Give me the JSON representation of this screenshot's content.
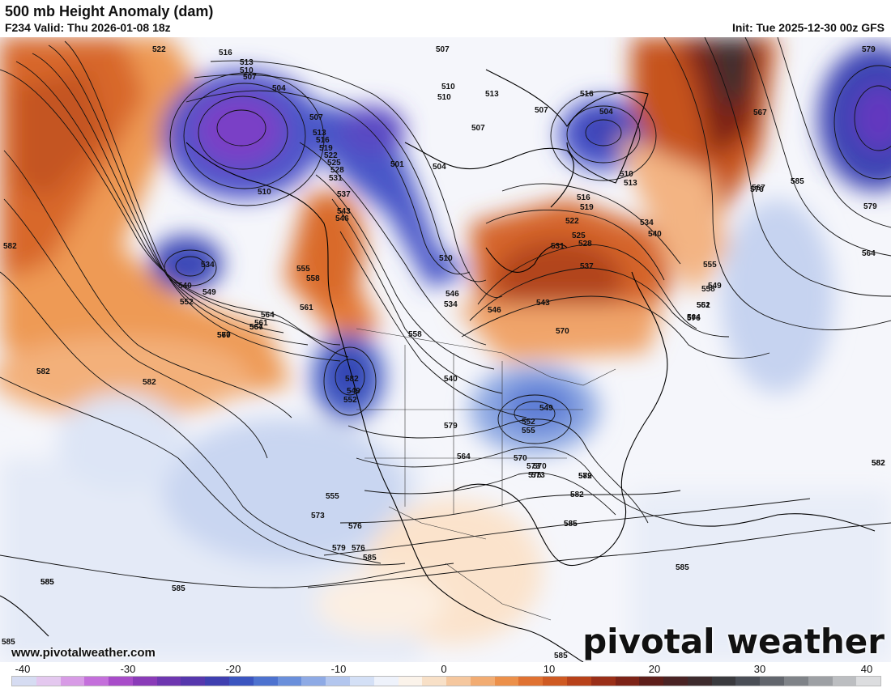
{
  "header": {
    "title": "500 mb Height Anomaly (dam)",
    "valid": "F234 Valid: Thu 2026-01-08 18z",
    "init": "Init: Tue 2025-12-30 00z GFS"
  },
  "footer": {
    "website": "www.pivotalweather.com",
    "brand": "pivotal weather"
  },
  "colorbar": {
    "ticks": [
      "-40",
      "-30",
      "-20",
      "-10",
      "0",
      "10",
      "20",
      "30",
      "40"
    ],
    "colors": [
      "#d6dcf2",
      "#e4c8ef",
      "#d89be6",
      "#c46fdb",
      "#a84cc9",
      "#8a3bb8",
      "#6e36b0",
      "#5637ad",
      "#3f3fb0",
      "#3b55c0",
      "#4d72cf",
      "#6a8fdb",
      "#8eaae5",
      "#b3c6ee",
      "#d4e0f6",
      "#eef2fb",
      "#fbf3ea",
      "#f8e0c7",
      "#f5c79e",
      "#f2ac72",
      "#ec904a",
      "#e07232",
      "#cf5a22",
      "#b8421a",
      "#9a2f18",
      "#7d2317",
      "#5e1e1a",
      "#4a2324",
      "#3d2b2d",
      "#3a3a3e",
      "#4a4e56",
      "#62666d",
      "#7f8388",
      "#9da0a4",
      "#bcbec1",
      "#dcdddf"
    ]
  },
  "map": {
    "icons": [
      "pivotal-logo-icon"
    ],
    "contour_labels": [
      "522",
      "516",
      "513",
      "510",
      "507",
      "504",
      "507",
      "510",
      "513",
      "516",
      "519",
      "522",
      "525",
      "528",
      "531",
      "537",
      "543",
      "546",
      "534",
      "540",
      "549",
      "552",
      "555",
      "558",
      "561",
      "564",
      "567",
      "570",
      "582",
      "582",
      "582",
      "582",
      "585",
      "585",
      "585",
      "585",
      "585",
      "585",
      "507",
      "510",
      "510",
      "513",
      "507",
      "516",
      "504",
      "510",
      "513",
      "507",
      "501",
      "504",
      "510",
      "516",
      "519",
      "522",
      "525",
      "528",
      "531",
      "534",
      "537",
      "540",
      "543",
      "546",
      "549",
      "552",
      "555",
      "558",
      "561",
      "564",
      "567",
      "570",
      "573",
      "576",
      "579",
      "582",
      "585",
      "576",
      "567",
      "579",
      "576",
      "564",
      "579",
      "582",
      "549",
      "552",
      "555",
      "573",
      "576",
      "579",
      "564",
      "570",
      "546",
      "534",
      "540",
      "558",
      "549",
      "555",
      "552",
      "561",
      "564",
      "567",
      "570",
      "573",
      "576",
      "582",
      "579",
      "582",
      "585",
      "585",
      "585"
    ]
  }
}
